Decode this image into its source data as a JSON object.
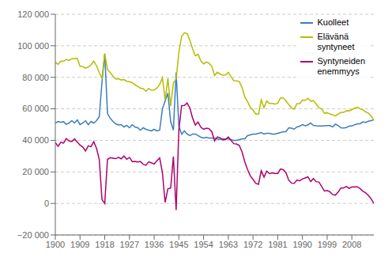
{
  "chart_data": {
    "type": "line",
    "title": "",
    "xlabel": "",
    "ylabel": "",
    "x": [
      1900,
      1901,
      1902,
      1903,
      1904,
      1905,
      1906,
      1907,
      1908,
      1909,
      1910,
      1911,
      1912,
      1913,
      1914,
      1915,
      1916,
      1917,
      1918,
      1919,
      1920,
      1921,
      1922,
      1923,
      1924,
      1925,
      1926,
      1927,
      1928,
      1929,
      1930,
      1931,
      1932,
      1933,
      1934,
      1935,
      1936,
      1937,
      1938,
      1939,
      1940,
      1941,
      1942,
      1943,
      1944,
      1945,
      1946,
      1947,
      1948,
      1949,
      1950,
      1951,
      1952,
      1953,
      1954,
      1955,
      1956,
      1957,
      1958,
      1959,
      1960,
      1961,
      1962,
      1963,
      1964,
      1965,
      1966,
      1967,
      1968,
      1969,
      1970,
      1971,
      1972,
      1973,
      1974,
      1975,
      1976,
      1977,
      1978,
      1979,
      1980,
      1981,
      1982,
      1983,
      1984,
      1985,
      1986,
      1987,
      1988,
      1989,
      1990,
      1991,
      1992,
      1993,
      1994,
      1995,
      1996,
      1997,
      1998,
      1999,
      2000,
      2001,
      2002,
      2003,
      2004,
      2005,
      2006,
      2007,
      2008,
      2009,
      2010,
      2011,
      2012,
      2013,
      2014,
      2015,
      2016
    ],
    "series": [
      {
        "name": "Kuolleet",
        "color": "#3b7dbf",
        "values": [
          51000,
          52000,
          51500,
          51800,
          50200,
          51000,
          52500,
          51000,
          53000,
          50000,
          51000,
          52500,
          50000,
          52000,
          51000,
          52500,
          55000,
          77000,
          95000,
          57000,
          54000,
          52000,
          50500,
          49800,
          50000,
          48500,
          49500,
          48000,
          50000,
          48500,
          48000,
          46500,
          48000,
          47000,
          46500,
          46000,
          47000,
          46000,
          46500,
          60000,
          65000,
          70000,
          52000,
          46500,
          83000,
          49000,
          44000,
          46000,
          44000,
          43000,
          44000,
          44000,
          43000,
          42000,
          41500,
          42000,
          41500,
          41500,
          41500,
          41000,
          40500,
          41000,
          41000,
          41000,
          40500,
          40000,
          40000,
          40500,
          41000,
          41000,
          43000,
          43500,
          44000,
          44000,
          44500,
          45000,
          44000,
          44500,
          44500,
          44000,
          44000,
          44500,
          45000,
          45500,
          45500,
          48000,
          47700,
          47100,
          48500,
          49000,
          50000,
          49294,
          49844,
          50988,
          49446,
          49280,
          49167,
          49108,
          49262,
          49345,
          49339,
          48550,
          50252,
          49418,
          48000,
          47928,
          48065,
          49077,
          49094,
          49906,
          50478,
          50527,
          51707,
          51355,
          52100,
          52492,
          53000
        ]
      },
      {
        "name": "Elävänä\nsyntyneet",
        "color": "#b5bd00",
        "values": [
          89600,
          88200,
          90300,
          90100,
          91400,
          90700,
          91800,
          91900,
          92000,
          87000,
          86800,
          85800,
          86500,
          88000,
          90200,
          87400,
          83000,
          79500,
          95000,
          84900,
          83000,
          80700,
          78900,
          79100,
          78300,
          78600,
          77500,
          77200,
          76600,
          75200,
          74300,
          73100,
          72800,
          71200,
          72900,
          71800,
          72000,
          73100,
          75400,
          79600,
          65600,
          79300,
          61700,
          76300,
          78800,
          95800,
          106075,
          108168,
          107759,
          103515,
          98065,
          93700,
          94600,
          90334,
          88524,
          89740,
          88924,
          86985,
          81169,
          83200,
          82129,
          81397,
          81454,
          83135,
          80428,
          77885,
          77697,
          77289,
          73654,
          67450,
          64559,
          61067,
          59267,
          56787,
          56604,
          65719,
          60723,
          65000,
          63413,
          63428,
          63064,
          63469,
          66892,
          66892,
          65076,
          62796,
          60632,
          59827,
          63316,
          63348,
          65549,
          65395,
          66731,
          64826,
          65231,
          63067,
          60723,
          59941,
          57108,
          57574,
          56742,
          56189,
          55555,
          56630,
          57758,
          57745,
          58840,
          58654,
          59530,
          60430,
          60980,
          59961,
          59493,
          58134,
          57232,
          55472,
          53000
        ]
      },
      {
        "name": "Syntyneiden\nenemmyys",
        "color": "#b0006e",
        "values": [
          38600,
          36200,
          38800,
          38300,
          41200,
          39700,
          39300,
          40900,
          39000,
          37000,
          35800,
          33300,
          36500,
          36000,
          39200,
          34900,
          28000,
          2500,
          -100,
          27900,
          29000,
          28700,
          28400,
          29300,
          28300,
          30100,
          28000,
          29200,
          26600,
          26700,
          26300,
          26600,
          24800,
          24200,
          26400,
          25800,
          25000,
          27100,
          28900,
          19600,
          600,
          9300,
          9700,
          29800,
          -4200,
          46800,
          62075,
          62168,
          63759,
          60515,
          54065,
          49700,
          51600,
          48334,
          47024,
          47740,
          47424,
          45485,
          39669,
          42200,
          41629,
          40397,
          40454,
          42135,
          39928,
          37885,
          37697,
          36789,
          32654,
          26450,
          21559,
          17567,
          15267,
          12787,
          12104,
          20719,
          16723,
          20500,
          18913,
          19428,
          19064,
          18969,
          21892,
          21392,
          19576,
          14796,
          12932,
          12727,
          14816,
          14348,
          15549,
          16101,
          16887,
          13838,
          15785,
          13787,
          13556,
          10833,
          7846,
          8229,
          7403,
          5639,
          5303,
          7212,
          9758,
          9817,
          10775,
          9577,
          10436,
          10524,
          10502,
          9434,
          7786,
          6779,
          5132,
          2980,
          0
        ]
      }
    ],
    "xlim": [
      1900,
      2016
    ],
    "xticks": [
      1900,
      1909,
      1918,
      1927,
      1936,
      1945,
      1954,
      1963,
      1972,
      1981,
      1990,
      1999,
      2008
    ],
    "ylim": [
      -20000,
      120000
    ],
    "yticks": [
      {
        "value": -20000,
        "label": "−20 000"
      },
      0,
      {
        "value": 20000,
        "label": "20 000"
      },
      {
        "value": 40000,
        "label": "40 000"
      },
      {
        "value": 60000,
        "label": "60 000"
      },
      {
        "value": 80000,
        "label": "80 000"
      },
      {
        "value": 100000,
        "label": "100 000"
      },
      {
        "value": 120000,
        "label": "120 000"
      }
    ],
    "grid": true,
    "legend": "upper right"
  }
}
